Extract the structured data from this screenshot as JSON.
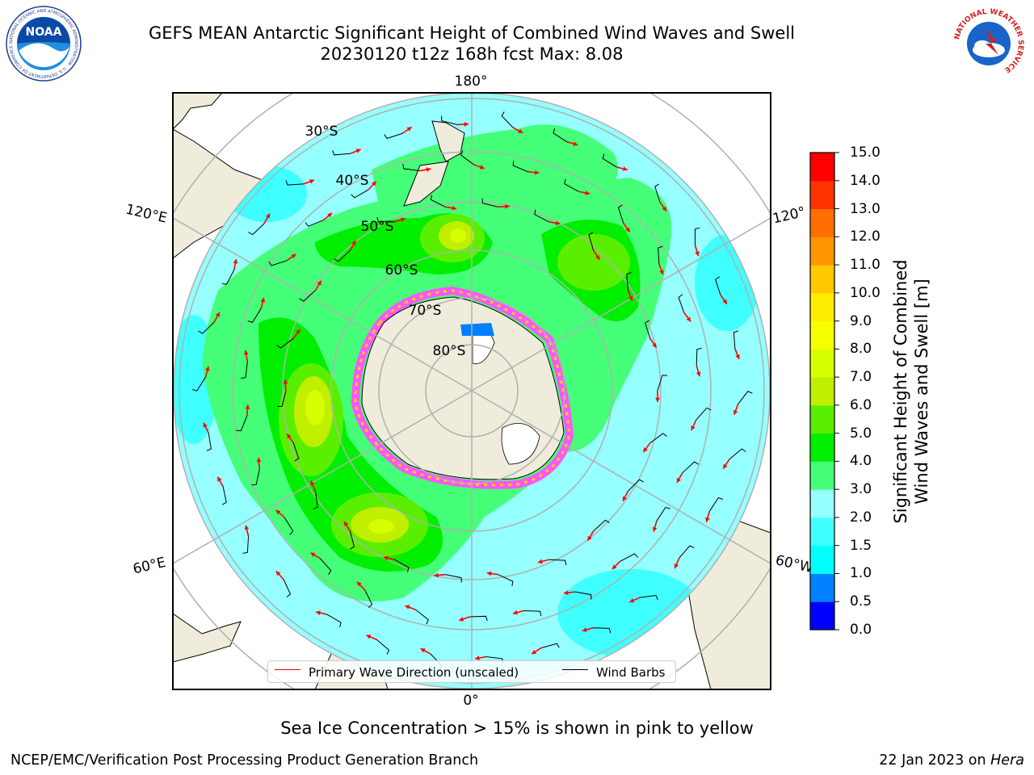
{
  "title": {
    "line1": "GEFS MEAN Antarctic Significant Height of Combined Wind Waves and Swell",
    "line2": "20230120 t12z 168h fcst   Max: 8.08"
  },
  "logos": {
    "left": {
      "text": "NOAA",
      "ring_text": "NATIONAL OCEANIC AND ATMOSPHERIC ADMINISTRATION · U.S. DEPARTMENT OF COMMERCE"
    },
    "right": {
      "ring_text": "NATIONAL WEATHER SERVICE"
    }
  },
  "map": {
    "projection": "south-polar-stereographic",
    "land_color": "#efecdc",
    "longitude_labels": {
      "top": "180°",
      "bottom": "0°",
      "upper_left": "120°E",
      "upper_right": "120°",
      "lower_left": "60°E",
      "lower_right": "60°W"
    },
    "latitude_labels": [
      "30°S",
      "40°S",
      "50°S",
      "60°S",
      "70°S",
      "80°S"
    ],
    "max_value": 8.08
  },
  "colorbar": {
    "label_line1": "Significant Height of Combined",
    "label_line2": "Wind Waves and Swell [m]",
    "ticks": [
      "0.0",
      "0.5",
      "1.0",
      "1.5",
      "2.0",
      "3.0",
      "4.0",
      "5.0",
      "6.0",
      "7.0",
      "8.0",
      "9.0",
      "10.0",
      "11.0",
      "12.0",
      "13.0",
      "14.0",
      "15.0"
    ],
    "colors": [
      "#0000ff",
      "#0080ff",
      "#00ffff",
      "#40ffff",
      "#96ffff",
      "#46ff78",
      "#00ef00",
      "#5aef00",
      "#c0ef00",
      "#d6ff00",
      "#f5ff00",
      "#ffee00",
      "#ffc800",
      "#ff9600",
      "#ff6e00",
      "#ff3200",
      "#ff0000"
    ]
  },
  "legend": {
    "wave_label": "Primary Wave Direction (unscaled)",
    "wave_color": "#ff0000",
    "barb_label": "Wind Barbs",
    "barb_color": "#000000"
  },
  "caption": "Sea Ice Concentration > 15% is shown in pink to yellow",
  "footer": {
    "left": "NCEP/EMC/Verification Post Processing Product Generation Branch",
    "right_prefix": "22 Jan 2023 on ",
    "right_machine": "Hera"
  }
}
